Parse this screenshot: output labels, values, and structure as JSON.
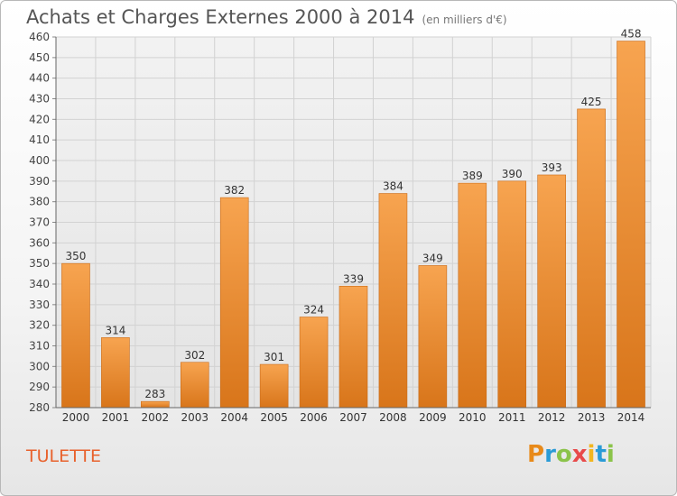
{
  "header": {
    "title": "Achats et Charges Externes 2000 à 2014",
    "unit": "(en milliers d'€)"
  },
  "footer": {
    "commune": "TULETTE",
    "brand_letters": [
      "P",
      "r",
      "o",
      "x",
      "i",
      "t",
      "i"
    ],
    "brand_colors": [
      "#e88a1a",
      "#2a9bd6",
      "#8bc34a",
      "#e84a4a",
      "#f2b61f",
      "#2a9bd6",
      "#8bc34a"
    ]
  },
  "chart_data": {
    "type": "bar",
    "title": "Achats et Charges Externes 2000 à 2014",
    "subtitle": "(en milliers d'€)",
    "categories": [
      "2000",
      "2001",
      "2002",
      "2003",
      "2004",
      "2005",
      "2006",
      "2007",
      "2008",
      "2009",
      "2010",
      "2011",
      "2012",
      "2013",
      "2014"
    ],
    "values": [
      350,
      314,
      283,
      302,
      382,
      301,
      324,
      339,
      384,
      349,
      389,
      390,
      393,
      425,
      458
    ],
    "ylim": [
      280,
      460
    ],
    "yticks": [
      280,
      290,
      300,
      310,
      320,
      330,
      340,
      350,
      360,
      370,
      380,
      390,
      400,
      410,
      420,
      430,
      440,
      450,
      460
    ],
    "grid": true,
    "bar_color_top": "#f7a450",
    "bar_color_bottom": "#d8751a"
  }
}
